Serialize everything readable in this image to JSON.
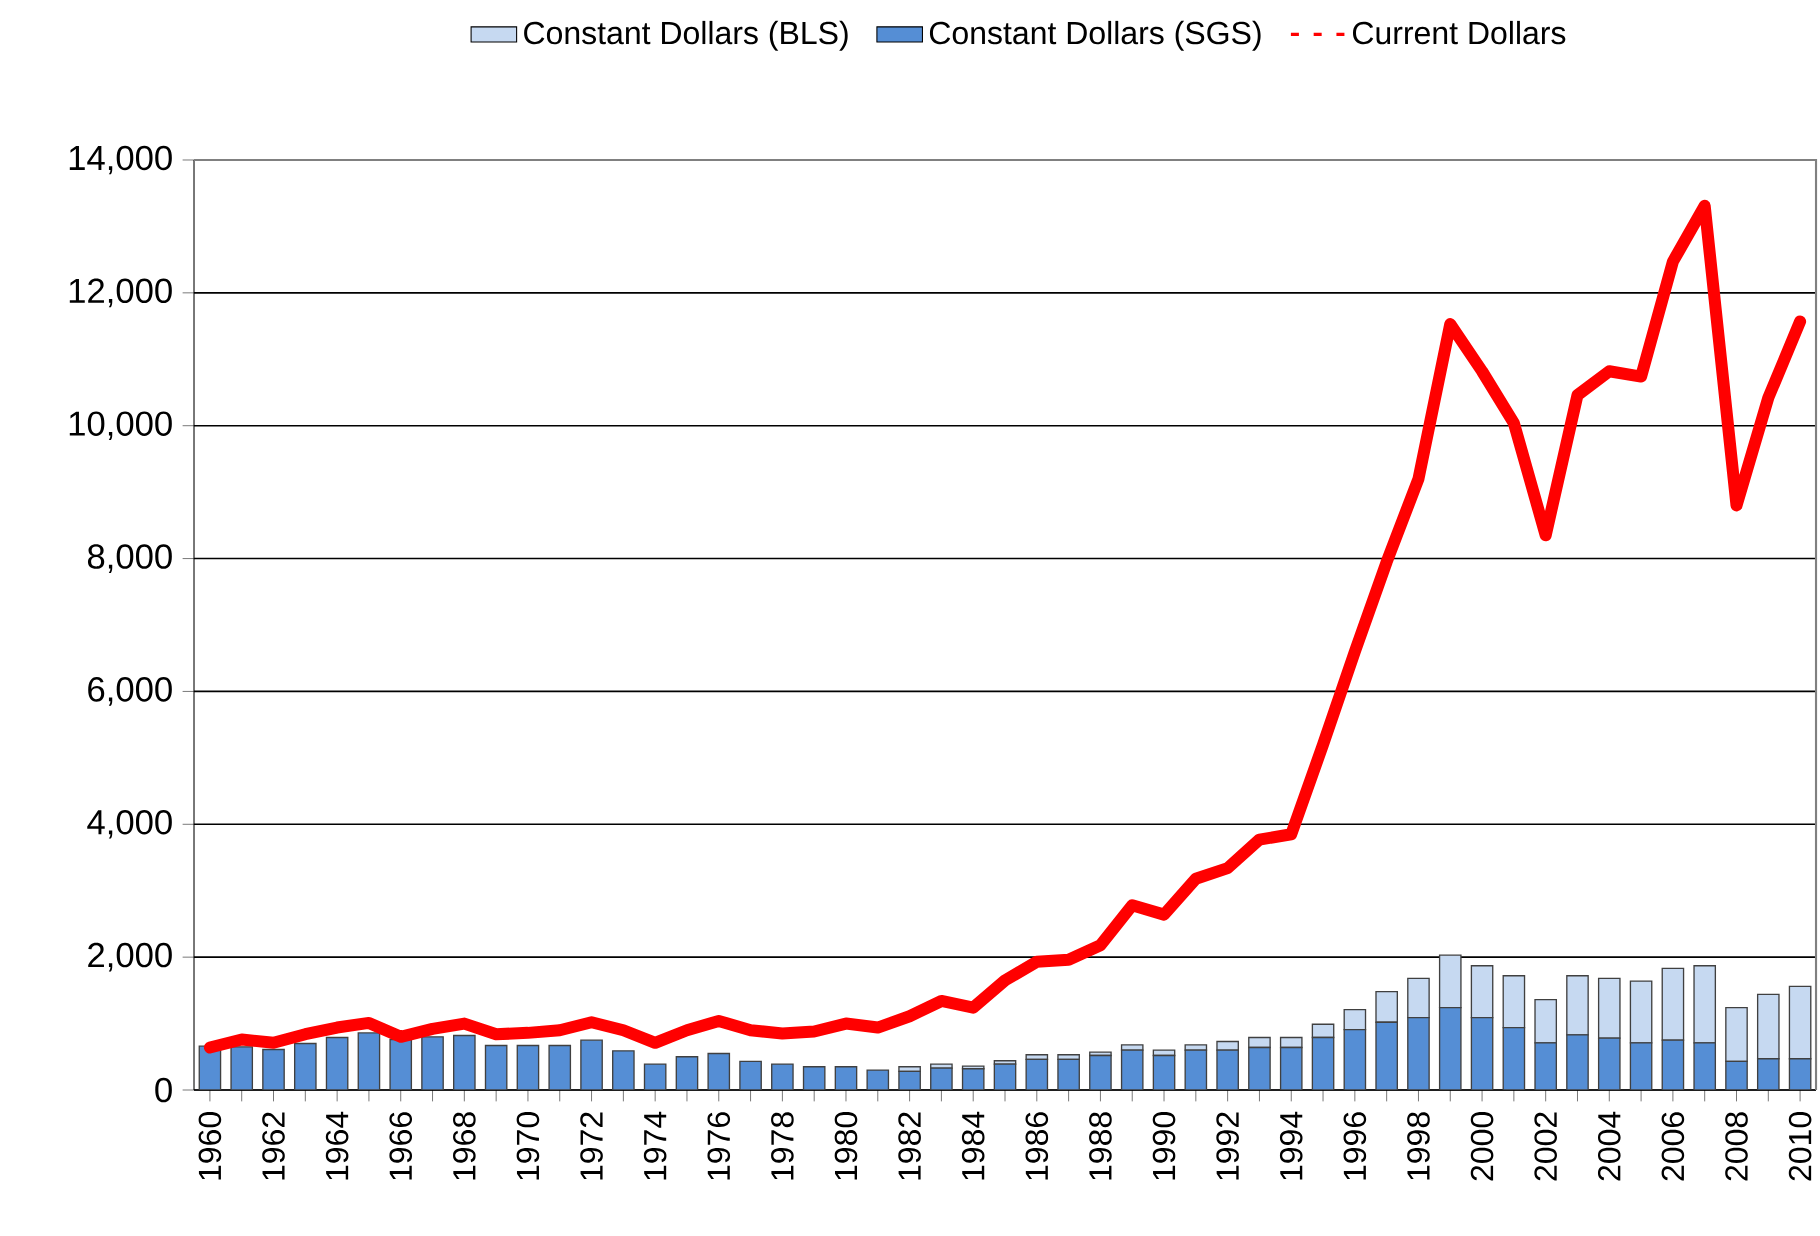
{
  "chart_data": {
    "type": "bar",
    "stacked": true,
    "legend": "top",
    "grid": "y",
    "categories": [
      "1960",
      null,
      "1962",
      null,
      "1964",
      null,
      "1966",
      null,
      "1968",
      null,
      "1970",
      null,
      "1972",
      null,
      "1974",
      null,
      "1976",
      null,
      "1978",
      null,
      "1980",
      null,
      "1982",
      null,
      "1984",
      null,
      "1986",
      null,
      "1988",
      null,
      "1990",
      null,
      "1992",
      null,
      "1994",
      null,
      "1996",
      null,
      "1998",
      null,
      "2000",
      null,
      "2002",
      null,
      "2004",
      null,
      "2006",
      null,
      "2008",
      null,
      "2010"
    ],
    "ylim": [
      0,
      14000
    ],
    "yticks": [
      {
        "value": 0,
        "label": "0"
      },
      {
        "value": 2000,
        "label": "2,000"
      },
      {
        "value": 4000,
        "label": "4,000"
      },
      {
        "value": 6000,
        "label": "6,000"
      },
      {
        "value": 8000,
        "label": "8,000"
      },
      {
        "value": 10000,
        "label": "10,000"
      },
      {
        "value": 12000,
        "label": "12,000"
      },
      {
        "value": 14000,
        "label": "14,000"
      }
    ],
    "series": [
      {
        "name": "Constant Dollars (SGS)",
        "color": "#558ed5",
        "values": [
          660,
          650,
          610,
          700,
          790,
          860,
          760,
          800,
          820,
          670,
          670,
          670,
          750,
          590,
          390,
          500,
          550,
          430,
          390,
          350,
          350,
          300,
          280,
          330,
          320,
          390,
          460,
          460,
          520,
          600,
          520,
          600,
          600,
          640,
          640,
          790,
          910,
          1020,
          1090,
          1240,
          1090,
          940,
          710,
          830,
          780,
          710,
          750,
          710,
          430,
          470,
          470
        ]
      },
      {
        "name": "Constant Dollars (BLS)",
        "color": "#c6d9f1",
        "values": [
          0,
          0,
          0,
          0,
          0,
          0,
          0,
          0,
          0,
          0,
          0,
          0,
          0,
          0,
          0,
          0,
          0,
          0,
          0,
          0,
          0,
          0,
          70,
          60,
          40,
          50,
          70,
          70,
          50,
          80,
          80,
          80,
          130,
          150,
          150,
          200,
          300,
          460,
          590,
          790,
          780,
          780,
          650,
          890,
          900,
          930,
          1080,
          1160,
          810,
          970,
          1090
        ]
      },
      {
        "name": "Current Dollars",
        "type": "line",
        "color": "#ff0000",
        "values": [
          640,
          760,
          710,
          840,
          940,
          1010,
          800,
          920,
          1000,
          840,
          860,
          900,
          1020,
          900,
          710,
          900,
          1040,
          900,
          850,
          880,
          1000,
          940,
          1110,
          1340,
          1240,
          1650,
          1930,
          1960,
          2180,
          2780,
          2640,
          3180,
          3340,
          3770,
          3850,
          5200,
          6600,
          7950,
          9200,
          11530,
          10820,
          10040,
          8350,
          10460,
          10820,
          10740,
          12470,
          13310,
          8800,
          10420,
          11570
        ]
      }
    ]
  }
}
